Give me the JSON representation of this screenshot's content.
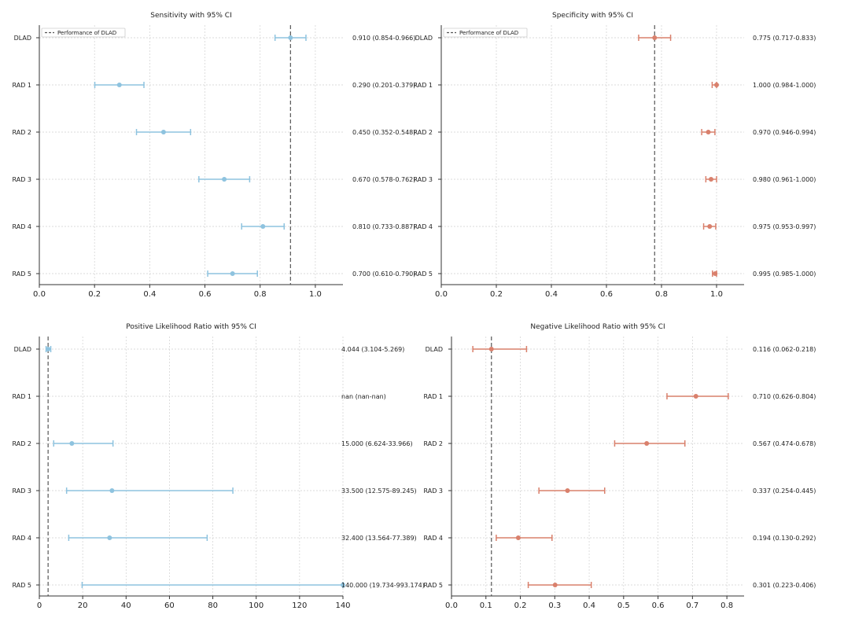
{
  "chart_data": [
    {
      "type": "errorbar",
      "title": "Sensitivity with 95% CI",
      "categories": [
        "DLAD",
        "RAD 1",
        "RAD 2",
        "RAD 3",
        "RAD 4",
        "RAD 5"
      ],
      "values": [
        0.91,
        0.29,
        0.45,
        0.67,
        0.81,
        0.7
      ],
      "lower": [
        0.854,
        0.201,
        0.352,
        0.578,
        0.733,
        0.61
      ],
      "upper": [
        0.966,
        0.379,
        0.548,
        0.762,
        0.887,
        0.79
      ],
      "value_labels": [
        "0.910 (0.854-0.966)",
        "0.290 (0.201-0.379)",
        "0.450 (0.352-0.548)",
        "0.670 (0.578-0.762)",
        "0.810 (0.733-0.887)",
        "0.700 (0.610-0.790)"
      ],
      "xlim": [
        0,
        1.1
      ],
      "xticks": [
        0.0,
        0.2,
        0.4,
        0.6,
        0.8,
        1.0
      ],
      "xtick_labels": [
        "0.0",
        "0.2",
        "0.4",
        "0.6",
        "0.8",
        "1.0"
      ],
      "reference_line": 0.91,
      "legend": "Performance of DLAD",
      "legend_position": "top-left",
      "color": "#8ec3df",
      "grid": true
    },
    {
      "type": "errorbar",
      "title": "Specificity with 95% CI",
      "categories": [
        "DLAD",
        "RAD 1",
        "RAD 2",
        "RAD 3",
        "RAD 4",
        "RAD 5"
      ],
      "values": [
        0.775,
        1.0,
        0.97,
        0.98,
        0.975,
        0.995
      ],
      "lower": [
        0.717,
        0.984,
        0.946,
        0.961,
        0.953,
        0.985
      ],
      "upper": [
        0.833,
        1.0,
        0.994,
        1.0,
        0.997,
        1.0
      ],
      "value_labels": [
        "0.775 (0.717-0.833)",
        "1.000 (0.984-1.000)",
        "0.970 (0.946-0.994)",
        "0.980 (0.961-1.000)",
        "0.975 (0.953-0.997)",
        "0.995 (0.985-1.000)"
      ],
      "xlim": [
        0,
        1.1
      ],
      "xticks": [
        0.0,
        0.2,
        0.4,
        0.6,
        0.8,
        1.0
      ],
      "xtick_labels": [
        "0.0",
        "0.2",
        "0.4",
        "0.6",
        "0.8",
        "1.0"
      ],
      "reference_line": 0.775,
      "legend": "Performance of DLAD",
      "legend_position": "top-left",
      "color": "#d9806c",
      "grid": true
    },
    {
      "type": "errorbar",
      "title": "Positive Likelihood Ratio with 95% CI",
      "categories": [
        "DLAD",
        "RAD 1",
        "RAD 2",
        "RAD 3",
        "RAD 4",
        "RAD 5"
      ],
      "values": [
        4.044,
        null,
        15.0,
        33.5,
        32.4,
        140.0
      ],
      "lower": [
        3.104,
        null,
        6.624,
        12.575,
        13.564,
        19.734
      ],
      "upper": [
        5.269,
        null,
        33.966,
        89.245,
        77.389,
        993.174
      ],
      "value_labels": [
        "4.044 (3.104-5.269)",
        "nan (nan-nan)",
        "15.000 (6.624-33.966)",
        "33.500 (12.575-89.245)",
        "32.400 (13.564-77.389)",
        "140.000 (19.734-993.174)"
      ],
      "xlim": [
        0,
        140
      ],
      "xticks": [
        0,
        20,
        40,
        60,
        80,
        100,
        120,
        140
      ],
      "xtick_labels": [
        "0",
        "20",
        "40",
        "60",
        "80",
        "100",
        "120",
        "140"
      ],
      "reference_line": 4.044,
      "color": "#8ec3df",
      "grid": true
    },
    {
      "type": "errorbar",
      "title": "Negative Likelihood Ratio with 95% CI",
      "categories": [
        "DLAD",
        "RAD 1",
        "RAD 2",
        "RAD 3",
        "RAD 4",
        "RAD 5"
      ],
      "values": [
        0.116,
        0.71,
        0.567,
        0.337,
        0.194,
        0.301
      ],
      "lower": [
        0.062,
        0.626,
        0.474,
        0.254,
        0.13,
        0.223
      ],
      "upper": [
        0.218,
        0.804,
        0.678,
        0.445,
        0.292,
        0.406
      ],
      "value_labels": [
        "0.116 (0.062-0.218)",
        "0.710 (0.626-0.804)",
        "0.567 (0.474-0.678)",
        "0.337 (0.254-0.445)",
        "0.194 (0.130-0.292)",
        "0.301 (0.223-0.406)"
      ],
      "xlim": [
        0,
        0.85
      ],
      "xticks": [
        0.0,
        0.1,
        0.2,
        0.3,
        0.4,
        0.5,
        0.6,
        0.7,
        0.8
      ],
      "xtick_labels": [
        "0.0",
        "0.1",
        "0.2",
        "0.3",
        "0.4",
        "0.5",
        "0.6",
        "0.7",
        "0.8"
      ],
      "reference_line": 0.116,
      "color": "#d9806c",
      "grid": true
    }
  ]
}
